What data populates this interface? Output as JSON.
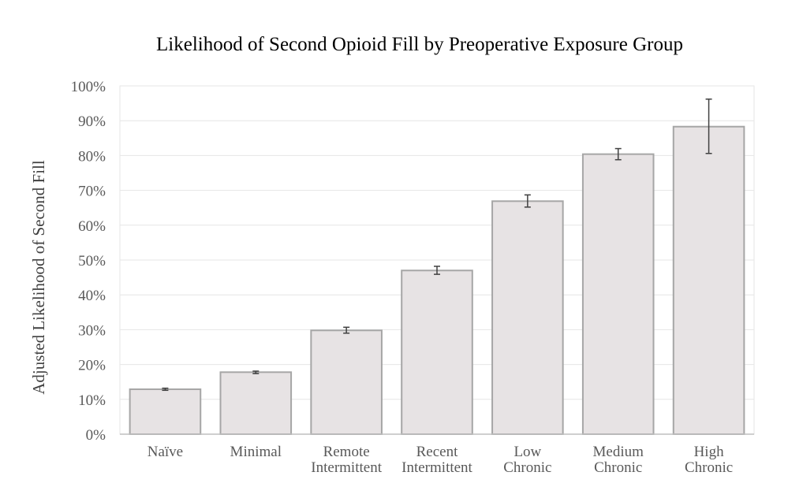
{
  "chart_data": {
    "type": "bar",
    "title": "Likelihood of Second Opioid Fill by Preoperative Exposure Group",
    "xlabel": "",
    "ylabel": "Adjusted Likelihood of Second Fill",
    "ylim": [
      0,
      100
    ],
    "y_ticks": [
      "0%",
      "10%",
      "20%",
      "30%",
      "40%",
      "50%",
      "60%",
      "70%",
      "80%",
      "90%",
      "100%"
    ],
    "y_unit": "%",
    "grid": true,
    "legend": "none",
    "categories": [
      [
        "Naïve"
      ],
      [
        "Minimal"
      ],
      [
        "Remote",
        "Intermittent"
      ],
      [
        "Recent",
        "Intermittent"
      ],
      [
        "Low",
        "Chronic"
      ],
      [
        "Medium",
        "Chronic"
      ],
      [
        "High",
        "Chronic"
      ]
    ],
    "values": [
      12.9,
      17.8,
      29.8,
      47.0,
      66.9,
      80.4,
      88.3
    ],
    "error_low": [
      12.6,
      17.4,
      29.0,
      45.9,
      65.2,
      78.8,
      80.6
    ],
    "error_high": [
      13.2,
      18.1,
      30.7,
      48.2,
      68.7,
      82.0,
      96.2
    ],
    "colors": {
      "bar_fill": "#e7e3e4",
      "bar_stroke": "#a6a6a6",
      "error_bar": "#404040",
      "grid": "#e6e6e6",
      "axis": "#bfbfbf"
    }
  }
}
